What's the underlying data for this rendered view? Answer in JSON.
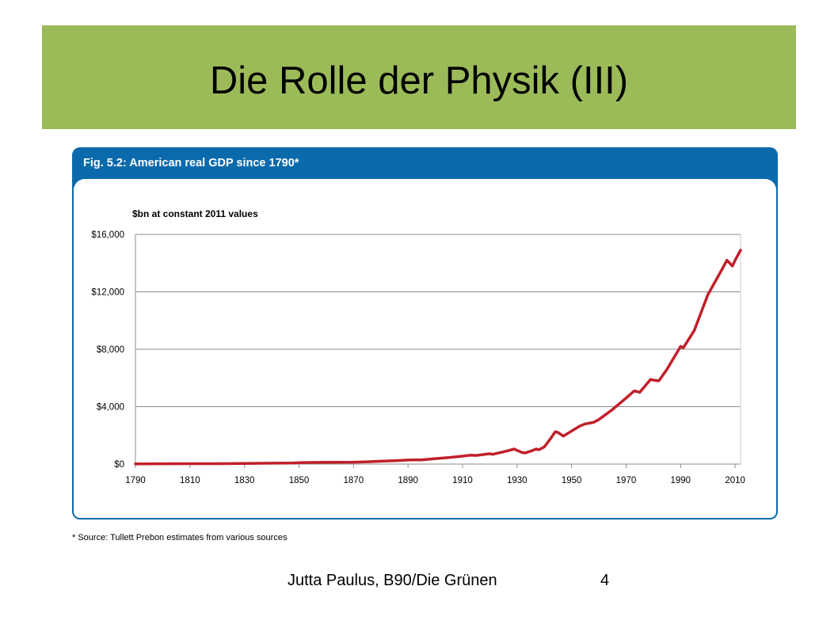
{
  "slide": {
    "title": "Die Rolle der Physik (III)",
    "footer_author": "Jutta Paulus, B90/Die Grünen",
    "page_number": "4",
    "colors": {
      "title_band": "#9bbb59",
      "figure_header": "#0a6aab",
      "line": "#c0202a"
    }
  },
  "figure": {
    "title": "Fig. 5.2: American real GDP since 1790*",
    "source": "* Source: Tullett Prebon estimates from various sources"
  },
  "chart_data": {
    "type": "line",
    "title": "Fig. 5.2: American real GDP since 1790*",
    "ylabel": "$bn at constant 2011 values",
    "xlabel": "",
    "xlim": [
      1790,
      2012
    ],
    "ylim": [
      0,
      16000
    ],
    "grid": true,
    "x_ticks": [
      1790,
      1810,
      1830,
      1850,
      1870,
      1890,
      1910,
      1930,
      1950,
      1970,
      1990,
      2010
    ],
    "x_tick_labels": [
      "1790",
      "1810",
      "1830",
      "1850",
      "1870",
      "1890",
      "1910",
      "1930",
      "1950",
      "1970",
      "1990",
      "2010"
    ],
    "y_ticks": [
      0,
      4000,
      8000,
      12000,
      16000
    ],
    "y_tick_labels": [
      "$0",
      "$4,000",
      "$8,000",
      "$12,000",
      "$16,000"
    ],
    "series": [
      {
        "color": "#c0202a",
        "x": [
          1790,
          1800,
          1810,
          1820,
          1830,
          1840,
          1848,
          1850,
          1860,
          1870,
          1875,
          1880,
          1885,
          1890,
          1893,
          1895,
          1900,
          1905,
          1910,
          1913,
          1915,
          1920,
          1921,
          1925,
          1929,
          1930,
          1932,
          1933,
          1935,
          1937,
          1938,
          1940,
          1942,
          1944,
          1945,
          1947,
          1950,
          1953,
          1955,
          1958,
          1960,
          1965,
          1970,
          1973,
          1975,
          1979,
          1980,
          1982,
          1985,
          1990,
          1991,
          1995,
          2000,
          2005,
          2007,
          2009,
          2010,
          2012
        ],
        "y": [
          10,
          20,
          25,
          30,
          40,
          60,
          80,
          100,
          120,
          130,
          160,
          200,
          230,
          280,
          300,
          290,
          380,
          450,
          550,
          620,
          600,
          720,
          680,
          850,
          1050,
          950,
          800,
          780,
          900,
          1050,
          1000,
          1200,
          1700,
          2250,
          2200,
          1950,
          2300,
          2650,
          2800,
          2900,
          3100,
          3800,
          4600,
          5100,
          5000,
          5900,
          5850,
          5800,
          6600,
          8200,
          8100,
          9300,
          11800,
          13500,
          14200,
          13800,
          14200,
          14900
        ]
      }
    ]
  }
}
